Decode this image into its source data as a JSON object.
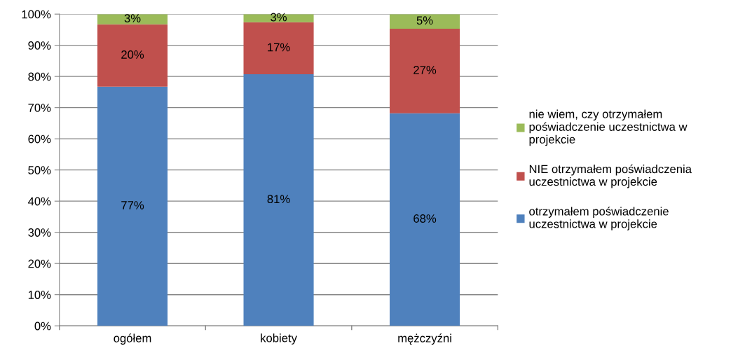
{
  "chart_data": {
    "type": "bar",
    "stacked": true,
    "categories": [
      "ogółem",
      "kobiety",
      "mężczyźni"
    ],
    "series": [
      {
        "name": "otrzymałem poświadczenie\nuczestnictwa w projekcie",
        "color": "#4f81bd",
        "values": [
          76.7,
          80.7,
          68.2
        ],
        "value_labels": [
          "77%",
          "81%",
          "68%"
        ]
      },
      {
        "name": "NIE otrzymałem poświadczenia\nuczestnictwa w projekcie",
        "color": "#c0504d",
        "values": [
          20.0,
          16.7,
          27.1
        ],
        "value_labels": [
          "20%",
          "17%",
          "27%"
        ]
      },
      {
        "name": "nie wiem, czy otrzymałem\npoświadczenie uczestnictwa w\nprojekcie",
        "color": "#9bbb59",
        "values": [
          3.3,
          2.6,
          4.7
        ],
        "value_labels": [
          "3%",
          "3%",
          "5%"
        ]
      }
    ],
    "ylim": [
      0,
      100
    ],
    "yticks": [
      {
        "value": 0,
        "label": "0%"
      },
      {
        "value": 10,
        "label": "10%"
      },
      {
        "value": 20,
        "label": "20%"
      },
      {
        "value": 30,
        "label": "30%"
      },
      {
        "value": 40,
        "label": "40%"
      },
      {
        "value": 50,
        "label": "50%"
      },
      {
        "value": 60,
        "label": "60%"
      },
      {
        "value": 70,
        "label": "70%"
      },
      {
        "value": 80,
        "label": "80%"
      },
      {
        "value": 90,
        "label": "90%"
      },
      {
        "value": 100,
        "label": "100%"
      }
    ],
    "grid": "y",
    "legend": "right"
  }
}
